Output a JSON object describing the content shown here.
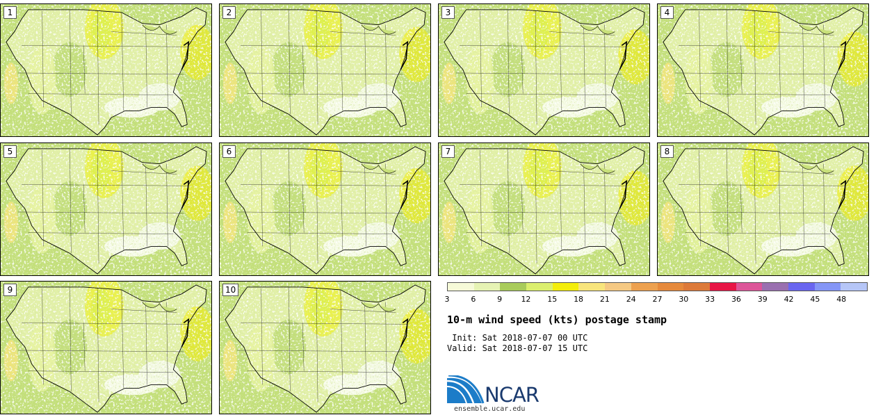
{
  "panels": [
    {
      "label": "1"
    },
    {
      "label": "2"
    },
    {
      "label": "3"
    },
    {
      "label": "4"
    },
    {
      "label": "5"
    },
    {
      "label": "6"
    },
    {
      "label": "7"
    },
    {
      "label": "8"
    },
    {
      "label": "9"
    },
    {
      "label": "10"
    }
  ],
  "colorbar": {
    "colors": [
      "#f6fad8",
      "#e6f3b4",
      "#a9cc5b",
      "#dbef6e",
      "#f4ee0b",
      "#f8e57c",
      "#f5c983",
      "#eda14f",
      "#e68a3c",
      "#dd7a3a",
      "#e81546",
      "#dd5599",
      "#9a70b0",
      "#6a66f0",
      "#8596f6",
      "#b6c6f7"
    ],
    "ticks": [
      "3",
      "6",
      "9",
      "12",
      "15",
      "18",
      "21",
      "24",
      "27",
      "30",
      "33",
      "36",
      "39",
      "42",
      "45",
      "48"
    ]
  },
  "title": "10-m wind speed (kts) postage stamp",
  "init_line": " Init: Sat 2018-07-07 00 UTC",
  "valid_line": "Valid: Sat 2018-07-07 15 UTC",
  "logo": {
    "text": "NCAR",
    "icon": "ncar-logo-icon"
  },
  "site": "ensemble.ucar.edu"
}
